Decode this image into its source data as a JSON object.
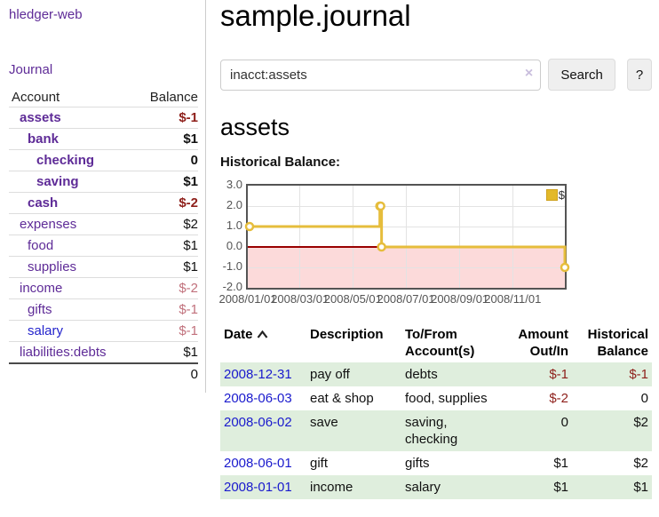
{
  "brand": "hledger-web",
  "nav": {
    "journal": "Journal"
  },
  "sidebar": {
    "header": {
      "account": "Account",
      "balance": "Balance"
    },
    "accounts": [
      {
        "name": "assets",
        "balance": "$-1"
      },
      {
        "name": "bank",
        "balance": "$1"
      },
      {
        "name": "checking",
        "balance": "0"
      },
      {
        "name": "saving",
        "balance": "$1"
      },
      {
        "name": "cash",
        "balance": "$-2"
      },
      {
        "name": "expenses",
        "balance": "$2"
      },
      {
        "name": "food",
        "balance": "$1"
      },
      {
        "name": "supplies",
        "balance": "$1"
      },
      {
        "name": "income",
        "balance": "$-2"
      },
      {
        "name": "gifts",
        "balance": "$-1"
      },
      {
        "name": "salary",
        "balance": "$-1"
      },
      {
        "name": "liabilities:debts",
        "balance": "$1"
      }
    ],
    "total": "0"
  },
  "main": {
    "title": "sample.journal",
    "search": {
      "value": "inacct:assets",
      "clear": "×",
      "button": "Search",
      "help": "?"
    },
    "heading": "assets",
    "chart_label": "Historical Balance:"
  },
  "chart_data": {
    "type": "line",
    "line_style": "step",
    "title": "Historical Balance:",
    "series": [
      {
        "name": "$",
        "color": "#e6bd3c",
        "points": [
          [
            "2008-01-01",
            1
          ],
          [
            "2008-06-01",
            2
          ],
          [
            "2008-06-02",
            2
          ],
          [
            "2008-06-03",
            0
          ],
          [
            "2008-12-31",
            -1
          ]
        ]
      }
    ],
    "x_range": [
      "2008-01-01",
      "2008-12-31"
    ],
    "ylim": [
      -2,
      3
    ],
    "yticks": [
      "3.0",
      "2.0",
      "1.0",
      "0.0",
      "-1.0",
      "-2.0"
    ],
    "xticks": [
      "2008/01/01",
      "2008/03/01",
      "2008/05/01",
      "2008/07/01",
      "2008/09/01",
      "2008/11/01"
    ],
    "legend": {
      "label": "$",
      "position": "top-right"
    },
    "grid": true,
    "negative_region_fill": "#fcdada",
    "zero_line_color": "#990000"
  },
  "register": {
    "headers": {
      "date": "Date",
      "description": "Description",
      "accounts": "To/From Account(s)",
      "amount": "Amount Out/In",
      "balance": "Historical Balance"
    },
    "rows": [
      {
        "date": "2008-12-31",
        "description": "pay off",
        "accounts": "debts",
        "amount": "$-1",
        "balance": "$-1"
      },
      {
        "date": "2008-06-03",
        "description": "eat & shop",
        "accounts": "food, supplies",
        "amount": "$-2",
        "balance": "0"
      },
      {
        "date": "2008-06-02",
        "description": "save",
        "accounts": "saving, checking",
        "amount": "0",
        "balance": "$2"
      },
      {
        "date": "2008-06-01",
        "description": "gift",
        "accounts": "gifts",
        "amount": "$1",
        "balance": "$2"
      },
      {
        "date": "2008-01-01",
        "description": "income",
        "accounts": "salary",
        "amount": "$1",
        "balance": "$1"
      }
    ]
  }
}
